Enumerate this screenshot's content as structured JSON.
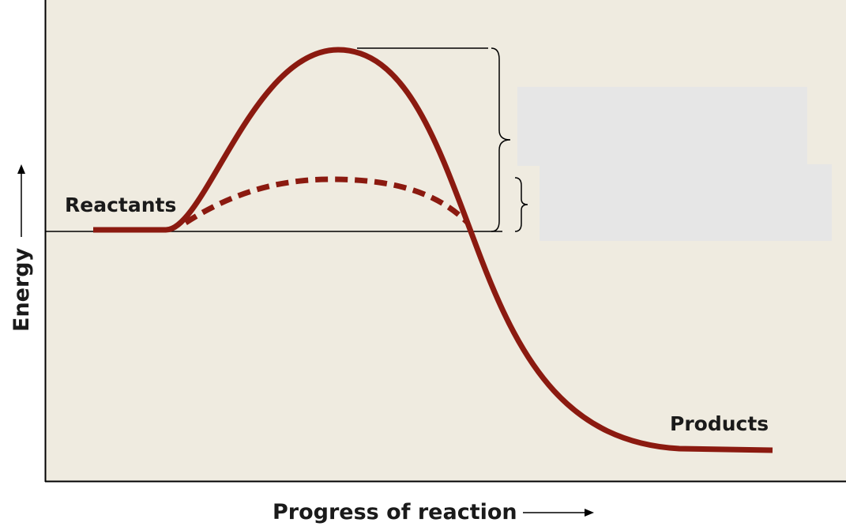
{
  "diagram": {
    "labels": {
      "reactants": "Reactants",
      "products": "Products"
    },
    "axes": {
      "y": "Energy",
      "x": "Progress of reaction"
    }
  }
}
